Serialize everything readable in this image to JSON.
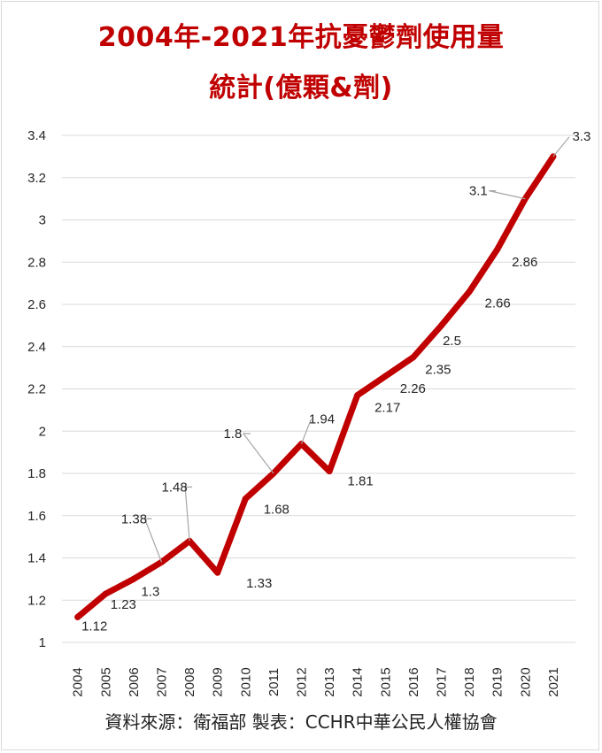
{
  "title_line1": "2004年-2021年抗憂鬱劑使用量",
  "title_line2": "統計(億顆&劑)",
  "source": "資料來源：衛福部  製表：CCHR中華公民人權協會",
  "colors": {
    "line": "#c00000",
    "title": "#c00000",
    "grid": "#d9d9d9",
    "text": "#262626",
    "leader": "#a6a6a6"
  },
  "chart_data": {
    "type": "line",
    "title": "2004年-2021年抗憂鬱劑使用量統計(億顆&劑)",
    "categories": [
      "2004",
      "2005",
      "2006",
      "2007",
      "2008",
      "2009",
      "2010",
      "2011",
      "2012",
      "2013",
      "2014",
      "2015",
      "2016",
      "2017",
      "2018",
      "2019",
      "2020",
      "2021"
    ],
    "values": [
      1.12,
      1.23,
      1.3,
      1.38,
      1.48,
      1.33,
      1.68,
      1.8,
      1.94,
      1.81,
      2.17,
      2.26,
      2.35,
      2.5,
      2.66,
      2.86,
      3.1,
      3.3
    ],
    "y_ticks": [
      "1",
      "1.2",
      "1.4",
      "1.6",
      "1.8",
      "2",
      "2.2",
      "2.4",
      "2.6",
      "2.8",
      "3",
      "3.2",
      "3.4"
    ],
    "ylim": [
      1,
      3.4
    ],
    "grid": true,
    "legend": "none"
  }
}
